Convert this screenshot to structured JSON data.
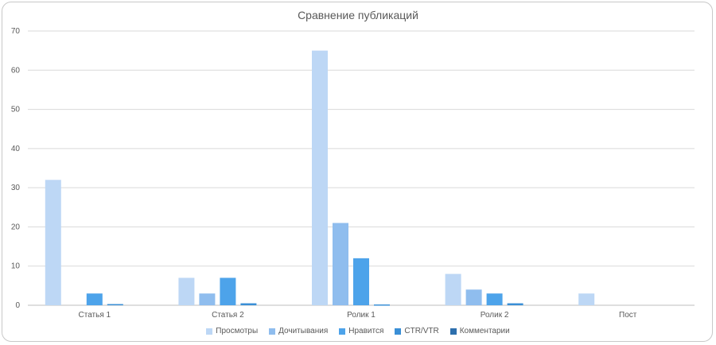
{
  "chart_data": {
    "type": "bar",
    "title": "Сравнение публикаций",
    "categories": [
      "Статья 1",
      "Статья 2",
      "Ролик 1",
      "Ролик 2",
      "Пост"
    ],
    "ylim": [
      0,
      70
    ],
    "yticks": [
      0,
      10,
      20,
      30,
      40,
      50,
      60,
      70
    ],
    "grid": true,
    "legend_position": "bottom",
    "series": [
      {
        "name": "Просмотры",
        "color": "#bdd7f5",
        "values": [
          32,
          7,
          65,
          8,
          3
        ]
      },
      {
        "name": "Дочитывания",
        "color": "#8fbdee",
        "values": [
          0,
          3,
          21,
          4,
          0
        ]
      },
      {
        "name": "Нравится",
        "color": "#4da3ea",
        "values": [
          3,
          7,
          12,
          3,
          0
        ]
      },
      {
        "name": "CTR/VTR",
        "color": "#3a8fd6",
        "values": [
          0.3,
          0.5,
          0.2,
          0.5,
          0
        ]
      },
      {
        "name": "Комментарии",
        "color": "#2d6fad",
        "values": [
          0,
          0,
          0,
          0,
          0
        ]
      }
    ]
  }
}
